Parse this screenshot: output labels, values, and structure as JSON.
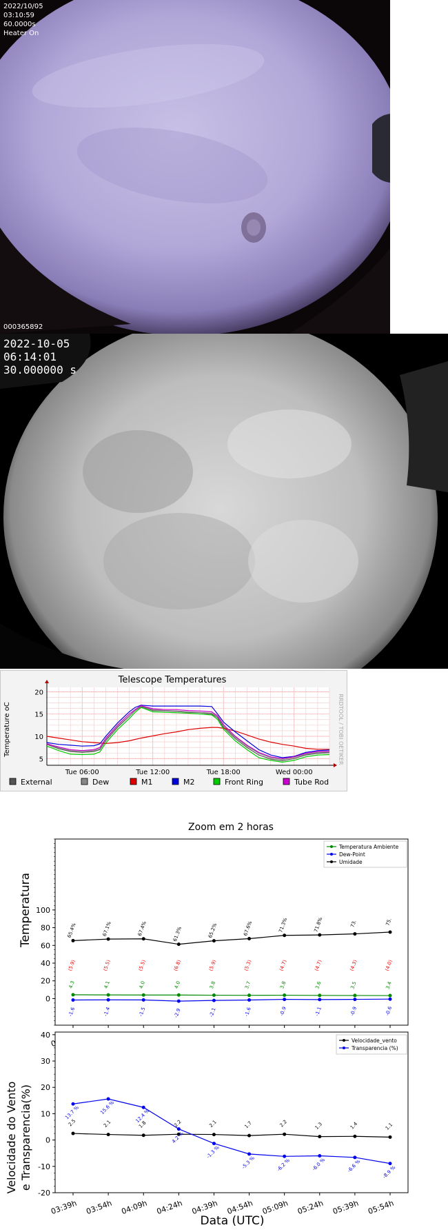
{
  "camera1": {
    "date": "2022/10/05",
    "time": "03:10:59",
    "exposure": "60.0000s",
    "heater": "Heater On",
    "frame_id": "000365892"
  },
  "camera2": {
    "date": "2022-10-05",
    "time": "06:14:01",
    "exposure": "30.000000 s"
  },
  "chart_data": [
    {
      "type": "line",
      "title": "Telescope Temperatures",
      "ylabel": "Temperature oC",
      "watermark": "RRDTOOL / TOBI OETIKER",
      "x_ticks": [
        "Tue 06:00",
        "Tue 12:00",
        "Tue 18:00",
        "Wed 00:00"
      ],
      "y_ticks": [
        5,
        10,
        15,
        20
      ],
      "ylim": [
        3.5,
        21
      ],
      "x": [
        0,
        1,
        2,
        3,
        4,
        4.5,
        5,
        6,
        7,
        7.5,
        8,
        9,
        10,
        11,
        12,
        13,
        14,
        14.5,
        15,
        16,
        17,
        18,
        19,
        20,
        21,
        22,
        23,
        24
      ],
      "series": [
        {
          "name": "External",
          "color": "#555555",
          "values": [
            8.2,
            7.2,
            6.6,
            6.4,
            6.6,
            7.0,
            9.0,
            12.0,
            14.5,
            15.8,
            16.7,
            15.8,
            15.7,
            15.6,
            15.4,
            15.3,
            15.0,
            14.2,
            12.0,
            9.5,
            7.5,
            5.8,
            4.9,
            4.5,
            5.0,
            5.8,
            6.2,
            6.3
          ]
        },
        {
          "name": "Dew",
          "color": "#888888",
          "values": [
            8.4,
            7.4,
            6.8,
            6.6,
            6.8,
            7.2,
            9.2,
            12.2,
            14.6,
            15.9,
            16.8,
            16.0,
            15.8,
            15.7,
            15.5,
            15.4,
            15.2,
            14.5,
            12.3,
            9.8,
            7.8,
            6.2,
            5.2,
            4.8,
            5.3,
            6.0,
            6.4,
            6.5
          ]
        },
        {
          "name": "M1",
          "color": "#dd0000",
          "values": [
            10.0,
            9.6,
            9.2,
            8.8,
            8.6,
            8.5,
            8.4,
            8.6,
            9.0,
            9.3,
            9.6,
            10.1,
            10.6,
            11.0,
            11.5,
            11.8,
            12.0,
            12.0,
            11.8,
            11.2,
            10.3,
            9.4,
            8.7,
            8.2,
            7.8,
            7.3,
            7.1,
            7.1
          ]
        },
        {
          "name": "M2",
          "color": "#0000dd",
          "values": [
            8.6,
            8.2,
            8.0,
            7.8,
            7.9,
            8.3,
            10.0,
            13.0,
            15.5,
            16.5,
            17.0,
            16.8,
            16.8,
            16.8,
            16.8,
            16.8,
            16.7,
            15.0,
            13.2,
            11.0,
            9.0,
            7.0,
            5.8,
            5.2,
            5.5,
            6.4,
            6.8,
            6.9
          ]
        },
        {
          "name": "Front Ring",
          "color": "#00cc00",
          "values": [
            7.8,
            6.8,
            6.0,
            5.9,
            6.0,
            6.5,
            8.5,
            11.5,
            14.0,
            15.4,
            16.5,
            15.5,
            15.4,
            15.3,
            15.2,
            15.0,
            14.8,
            13.8,
            11.6,
            9.0,
            7.0,
            5.2,
            4.6,
            4.2,
            4.6,
            5.4,
            5.8,
            5.9
          ]
        },
        {
          "name": "Tube Rod",
          "color": "#cc00cc",
          "values": [
            8.3,
            7.6,
            7.0,
            6.8,
            7.0,
            7.5,
            9.5,
            12.5,
            15.0,
            16.0,
            16.9,
            16.2,
            16.0,
            16.0,
            15.8,
            15.7,
            15.5,
            14.6,
            12.6,
            10.0,
            8.0,
            6.4,
            5.4,
            5.0,
            5.4,
            6.2,
            6.6,
            6.6
          ]
        }
      ],
      "legend_position": "bottom"
    },
    {
      "type": "line",
      "title": "Zoom em 2 horas",
      "ylabel": "Temperatura",
      "categories": [
        "03:39h",
        "03:54h",
        "04:09h",
        "04:24h",
        "04:39h",
        "04:54h",
        "05:09h",
        "05:24h",
        "05:39h",
        "05:54h"
      ],
      "y_ticks": [
        0,
        20,
        40,
        60,
        80,
        100
      ],
      "ylim": [
        -30,
        180
      ],
      "series": [
        {
          "name": "Temperatura Ambiente",
          "color": "#008800",
          "values": [
            4.3,
            4.1,
            4.0,
            4.0,
            3.8,
            3.7,
            3.8,
            3.6,
            3.5,
            3.4
          ],
          "labels": [
            "4.3",
            "4.1",
            "4.0",
            "4.0",
            "3.8",
            "3.7",
            "3.8",
            "3.6",
            "3.5",
            "3.4"
          ]
        },
        {
          "name": "Dew-Point",
          "color": "#0000ee",
          "values": [
            -1.6,
            -1.4,
            -1.5,
            -2.9,
            -2.1,
            -1.6,
            -0.9,
            -1.1,
            -0.9,
            -0.6
          ],
          "labels": [
            "-1.6",
            "-1.4",
            "-1.5",
            "-2.9",
            "-2.1",
            "-1.6",
            "-0.9",
            "-1.1",
            "-0.9",
            "-0.6"
          ]
        },
        {
          "name": "Umidade",
          "color": "#000000",
          "values": [
            65.4,
            67.1,
            67.4,
            61.3,
            65.2,
            67.6,
            71.3,
            71.8,
            73,
            75
          ],
          "labels": [
            "65.4%",
            "67.1%",
            "67.4%",
            "61.3%",
            "65.2%",
            "67.6%",
            "71.3%",
            "71.8%",
            "73.",
            "75."
          ]
        }
      ],
      "red_labels": [
        "(5.9)",
        "(5.5)",
        "(5.5)",
        "(6.8)",
        "(5.9)",
        "(5.3)",
        "(4.7)",
        "(4.7)",
        "(4.3)",
        "(4.0)"
      ],
      "legend_position": "top-right"
    },
    {
      "type": "line",
      "ylabel": "Velocidade do Vento\ne Transparencia(%)",
      "xlabel": "Data (UTC)",
      "categories": [
        "03:39h",
        "03:54h",
        "04:09h",
        "04:24h",
        "04:39h",
        "04:54h",
        "05:09h",
        "05:24h",
        "05:39h",
        "05:54h"
      ],
      "y_ticks": [
        -20,
        -10,
        0,
        10,
        20,
        30,
        40
      ],
      "ylim": [
        -20,
        41
      ],
      "series": [
        {
          "name": "Velocidade_vento",
          "color": "#000000",
          "values": [
            2.5,
            2.1,
            1.8,
            2.2,
            2.1,
            1.7,
            2.2,
            1.3,
            1.4,
            1.1
          ],
          "labels": [
            "2.5",
            "2.1",
            "1.8",
            "2.2",
            "2.1",
            "1.7",
            "2.2",
            "1.3",
            "1.4",
            "1.1"
          ]
        },
        {
          "name": "Transparencia (%)",
          "color": "#0000ee",
          "values": [
            13.7,
            15.6,
            12.4,
            4.2,
            -1.3,
            -5.3,
            -6.2,
            -6.0,
            -6.6,
            -8.9
          ],
          "labels": [
            "13.7 %",
            "15.6 %",
            "12.4 %",
            "4.2 %",
            "-1.3 %",
            "-5.3 %",
            "-6.2 %",
            "-6.0 %",
            "-6.6 %",
            "-8.9 %"
          ]
        }
      ],
      "legend_position": "top-right"
    }
  ]
}
